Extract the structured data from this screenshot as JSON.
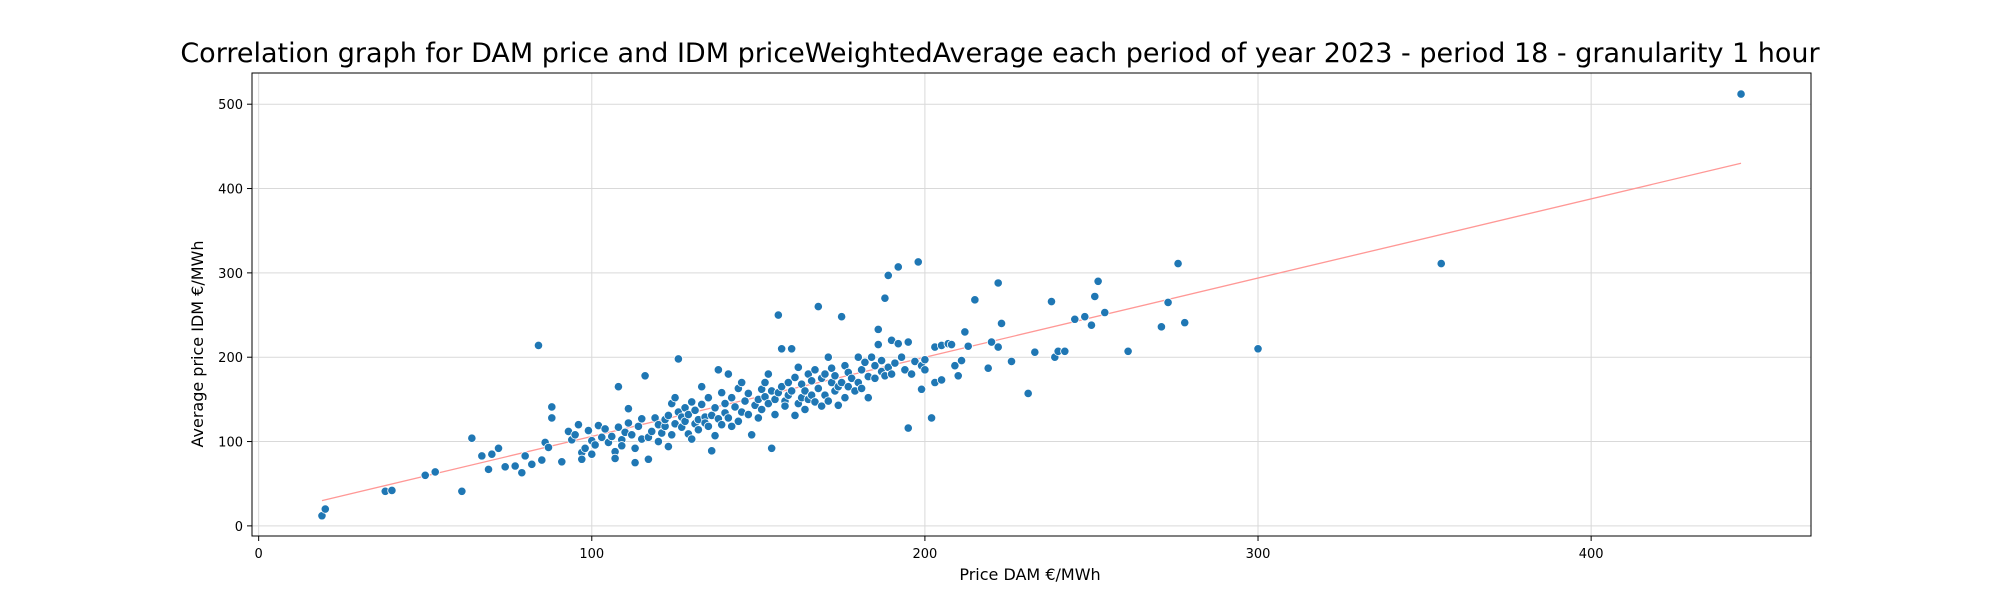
{
  "chart_data": {
    "type": "scatter",
    "title": "Correlation graph for DAM price and IDM priceWeightedAverage each period of year 2023 - period 18 - granularity 1 hour",
    "xlabel": "Price DAM €/MWh",
    "ylabel": "Average price IDM €/MWh",
    "xlim": [
      -2,
      466
    ],
    "ylim": [
      -12,
      537
    ],
    "xticks": [
      0,
      100,
      200,
      300,
      400
    ],
    "yticks": [
      0,
      100,
      200,
      300,
      400,
      500
    ],
    "grid": true,
    "colors": {
      "points": "#1f77b4",
      "point_edge": "#ffffff",
      "trend": "#ff9896",
      "grid": "#d9d9d9"
    },
    "trend_line": {
      "x": [
        19,
        445
      ],
      "y": [
        30,
        430
      ]
    },
    "points": [
      [
        19,
        12
      ],
      [
        20,
        20
      ],
      [
        38,
        41
      ],
      [
        40,
        42
      ],
      [
        50,
        60
      ],
      [
        53,
        64
      ],
      [
        61,
        41
      ],
      [
        64,
        104
      ],
      [
        67,
        83
      ],
      [
        69,
        67
      ],
      [
        70,
        85
      ],
      [
        72,
        92
      ],
      [
        74,
        70
      ],
      [
        77,
        71
      ],
      [
        79,
        63
      ],
      [
        80,
        83
      ],
      [
        82,
        73
      ],
      [
        84,
        214
      ],
      [
        85,
        78
      ],
      [
        86,
        99
      ],
      [
        87,
        93
      ],
      [
        88,
        128
      ],
      [
        88,
        141
      ],
      [
        91,
        76
      ],
      [
        93,
        112
      ],
      [
        94,
        102
      ],
      [
        95,
        108
      ],
      [
        96,
        120
      ],
      [
        97,
        87
      ],
      [
        97,
        79
      ],
      [
        98,
        92
      ],
      [
        99,
        113
      ],
      [
        100,
        85
      ],
      [
        100,
        101
      ],
      [
        101,
        96
      ],
      [
        102,
        119
      ],
      [
        103,
        105
      ],
      [
        104,
        115
      ],
      [
        105,
        99
      ],
      [
        106,
        106
      ],
      [
        107,
        88
      ],
      [
        107,
        80
      ],
      [
        108,
        165
      ],
      [
        108,
        117
      ],
      [
        109,
        102
      ],
      [
        109,
        95
      ],
      [
        110,
        111
      ],
      [
        111,
        122
      ],
      [
        111,
        139
      ],
      [
        112,
        108
      ],
      [
        113,
        75
      ],
      [
        113,
        92
      ],
      [
        114,
        118
      ],
      [
        115,
        103
      ],
      [
        115,
        127
      ],
      [
        116,
        178
      ],
      [
        117,
        79
      ],
      [
        117,
        105
      ],
      [
        118,
        112
      ],
      [
        119,
        128
      ],
      [
        120,
        120
      ],
      [
        120,
        100
      ],
      [
        121,
        110
      ],
      [
        122,
        118
      ],
      [
        122,
        126
      ],
      [
        123,
        94
      ],
      [
        123,
        131
      ],
      [
        124,
        145
      ],
      [
        124,
        108
      ],
      [
        125,
        152
      ],
      [
        125,
        121
      ],
      [
        126,
        198
      ],
      [
        126,
        135
      ],
      [
        127,
        117
      ],
      [
        127,
        129
      ],
      [
        128,
        124
      ],
      [
        128,
        140
      ],
      [
        129,
        109
      ],
      [
        129,
        132
      ],
      [
        130,
        147
      ],
      [
        130,
        103
      ],
      [
        131,
        121
      ],
      [
        131,
        137
      ],
      [
        132,
        126
      ],
      [
        132,
        114
      ],
      [
        133,
        165
      ],
      [
        133,
        144
      ],
      [
        134,
        129
      ],
      [
        134,
        122
      ],
      [
        135,
        118
      ],
      [
        135,
        152
      ],
      [
        136,
        89
      ],
      [
        136,
        131
      ],
      [
        137,
        107
      ],
      [
        137,
        140
      ],
      [
        138,
        127
      ],
      [
        138,
        185
      ],
      [
        139,
        158
      ],
      [
        139,
        120
      ],
      [
        140,
        145
      ],
      [
        140,
        134
      ],
      [
        141,
        180
      ],
      [
        141,
        128
      ],
      [
        142,
        118
      ],
      [
        142,
        152
      ],
      [
        143,
        141
      ],
      [
        144,
        163
      ],
      [
        144,
        124
      ],
      [
        145,
        135
      ],
      [
        145,
        170
      ],
      [
        146,
        148
      ],
      [
        147,
        132
      ],
      [
        147,
        157
      ],
      [
        148,
        108
      ],
      [
        149,
        143
      ],
      [
        150,
        150
      ],
      [
        150,
        128
      ],
      [
        151,
        162
      ],
      [
        151,
        138
      ],
      [
        152,
        170
      ],
      [
        152,
        153
      ],
      [
        153,
        145
      ],
      [
        153,
        180
      ],
      [
        154,
        92
      ],
      [
        154,
        160
      ],
      [
        155,
        132
      ],
      [
        155,
        150
      ],
      [
        156,
        250
      ],
      [
        156,
        158
      ],
      [
        157,
        210
      ],
      [
        157,
        165
      ],
      [
        158,
        148
      ],
      [
        158,
        142
      ],
      [
        159,
        170
      ],
      [
        159,
        155
      ],
      [
        160,
        160
      ],
      [
        160,
        210
      ],
      [
        161,
        131
      ],
      [
        161,
        176
      ],
      [
        162,
        145
      ],
      [
        162,
        188
      ],
      [
        163,
        152
      ],
      [
        163,
        168
      ],
      [
        164,
        138
      ],
      [
        164,
        160
      ],
      [
        165,
        180
      ],
      [
        165,
        150
      ],
      [
        166,
        155
      ],
      [
        166,
        172
      ],
      [
        167,
        147
      ],
      [
        167,
        185
      ],
      [
        168,
        260
      ],
      [
        168,
        163
      ],
      [
        169,
        175
      ],
      [
        169,
        142
      ],
      [
        170,
        155
      ],
      [
        170,
        180
      ],
      [
        171,
        148
      ],
      [
        171,
        200
      ],
      [
        172,
        170
      ],
      [
        172,
        187
      ],
      [
        173,
        160
      ],
      [
        173,
        178
      ],
      [
        174,
        143
      ],
      [
        174,
        165
      ],
      [
        175,
        248
      ],
      [
        175,
        170
      ],
      [
        176,
        152
      ],
      [
        176,
        190
      ],
      [
        177,
        165
      ],
      [
        177,
        182
      ],
      [
        178,
        175
      ],
      [
        179,
        160
      ],
      [
        180,
        200
      ],
      [
        180,
        170
      ],
      [
        181,
        185
      ],
      [
        181,
        163
      ],
      [
        182,
        194
      ],
      [
        183,
        152
      ],
      [
        183,
        177
      ],
      [
        184,
        200
      ],
      [
        185,
        190
      ],
      [
        185,
        175
      ],
      [
        186,
        233
      ],
      [
        186,
        215
      ],
      [
        187,
        183
      ],
      [
        187,
        196
      ],
      [
        188,
        270
      ],
      [
        188,
        178
      ],
      [
        189,
        297
      ],
      [
        189,
        188
      ],
      [
        190,
        220
      ],
      [
        190,
        180
      ],
      [
        191,
        193
      ],
      [
        192,
        216
      ],
      [
        192,
        307
      ],
      [
        193,
        200
      ],
      [
        194,
        185
      ],
      [
        195,
        116
      ],
      [
        195,
        218
      ],
      [
        196,
        180
      ],
      [
        197,
        195
      ],
      [
        198,
        313
      ],
      [
        199,
        162
      ],
      [
        199,
        190
      ],
      [
        200,
        185
      ],
      [
        200,
        197
      ],
      [
        202,
        128
      ],
      [
        203,
        212
      ],
      [
        203,
        170
      ],
      [
        205,
        214
      ],
      [
        205,
        173
      ],
      [
        207,
        216
      ],
      [
        208,
        215
      ],
      [
        209,
        190
      ],
      [
        210,
        178
      ],
      [
        211,
        196
      ],
      [
        212,
        230
      ],
      [
        213,
        213
      ],
      [
        215,
        268
      ],
      [
        219,
        187
      ],
      [
        220,
        218
      ],
      [
        222,
        288
      ],
      [
        222,
        212
      ],
      [
        223,
        240
      ],
      [
        226,
        195
      ],
      [
        231,
        157
      ],
      [
        233,
        206
      ],
      [
        238,
        266
      ],
      [
        239,
        200
      ],
      [
        240,
        207
      ],
      [
        242,
        207
      ],
      [
        245,
        245
      ],
      [
        248,
        248
      ],
      [
        250,
        238
      ],
      [
        251,
        272
      ],
      [
        252,
        290
      ],
      [
        254,
        253
      ],
      [
        261,
        207
      ],
      [
        271,
        236
      ],
      [
        273,
        265
      ],
      [
        276,
        311
      ],
      [
        278,
        241
      ],
      [
        300,
        210
      ],
      [
        355,
        311
      ],
      [
        445,
        512
      ]
    ]
  }
}
